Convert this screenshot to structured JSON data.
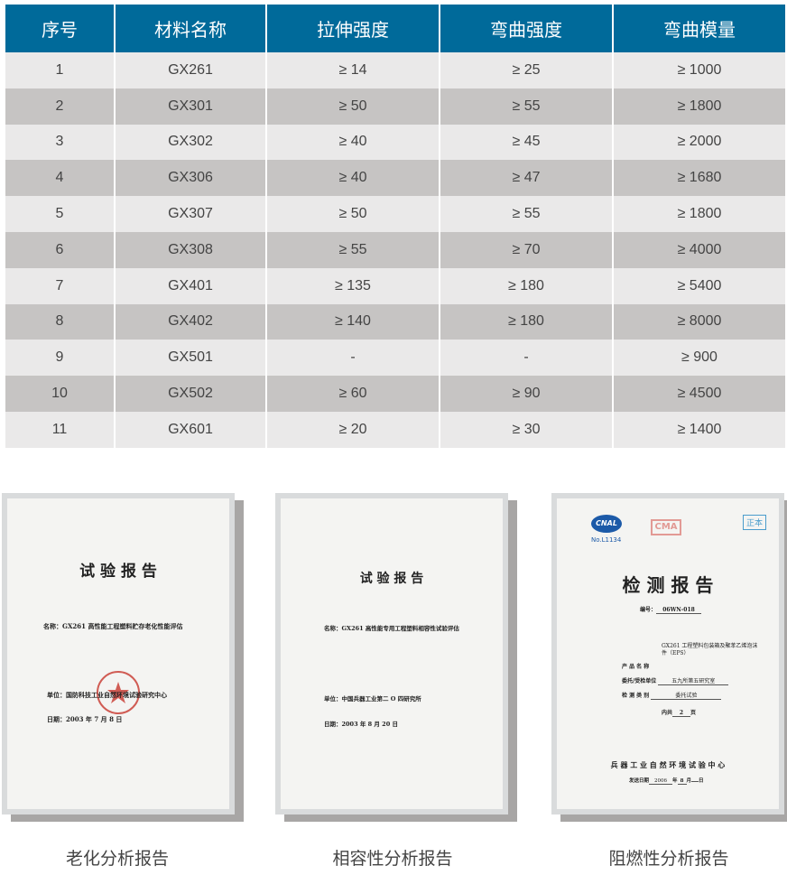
{
  "table": {
    "headers": [
      "序号",
      "材料名称",
      "拉伸强度",
      "弯曲强度",
      "弯曲模量"
    ],
    "rows": [
      [
        "1",
        "GX261",
        "≥ 14",
        "≥ 25",
        "≥ 1000"
      ],
      [
        "2",
        "GX301",
        "≥ 50",
        "≥ 55",
        "≥ 1800"
      ],
      [
        "3",
        "GX302",
        "≥ 40",
        "≥ 45",
        "≥ 2000"
      ],
      [
        "4",
        "GX306",
        "≥ 40",
        "≥ 47",
        "≥ 1680"
      ],
      [
        "5",
        "GX307",
        "≥ 50",
        "≥ 55",
        "≥ 1800"
      ],
      [
        "6",
        "GX308",
        "≥ 55",
        "≥ 70",
        "≥ 4000"
      ],
      [
        "7",
        "GX401",
        "≥ 135",
        "≥ 180",
        "≥ 5400"
      ],
      [
        "8",
        "GX402",
        "≥ 140",
        "≥ 180",
        "≥ 8000"
      ],
      [
        "9",
        "GX501",
        "-",
        "-",
        "≥ 900"
      ],
      [
        "10",
        "GX502",
        "≥ 60",
        "≥ 90",
        "≥ 4500"
      ],
      [
        "11",
        "GX601",
        "≥ 20",
        "≥ 30",
        "≥ 1400"
      ]
    ]
  },
  "reports": [
    {
      "caption": "老化分析报告",
      "title": "试 验 报 告",
      "name": "名称：GX261 高性能工程塑料贮存老化性能评估",
      "unit": "单位：国防科技工业自然环境试验研究中心",
      "date": "日期：2003 年 7 月 8 日"
    },
    {
      "caption": "相容性分析报告",
      "title": "试 验 报 告",
      "name": "名称：GX261 高性能专用工程塑料相容性试验评估",
      "unit": "单位：中国兵器工业第二 O 四研究所",
      "date": "日期：2003 年 8 月 20 日"
    },
    {
      "caption": "阻燃性分析报告",
      "title": "检 测 报 告",
      "logo1": "CNAL",
      "logo1_sub": "No.L1134",
      "logo2": "CMA",
      "stamp": "正本",
      "number_label": "编号：",
      "number": "06WN-018",
      "product_label": "产 品 名 称",
      "product": "GX261 工程塑料包装箱及聚苯乙烯泡沫件（EPS）",
      "client_label": "委托/受检单位",
      "client": "五九所第五研究室",
      "type_label": "检 测 类 别",
      "type": "委托试验",
      "pages_label": "内共",
      "pages": "2",
      "pages_unit": "页",
      "center": "兵 器 工 业 自 然 环 境 试 验 中 心",
      "issue_label": "发送日期",
      "issue_year": "2006",
      "issue_year_unit": "年",
      "issue_month": "8",
      "issue_month_unit": "月",
      "issue_day_unit": "日"
    }
  ],
  "colors": {
    "header": "#006a9a",
    "row_light": "#eae9e9",
    "row_dark": "#c6c4c3"
  }
}
